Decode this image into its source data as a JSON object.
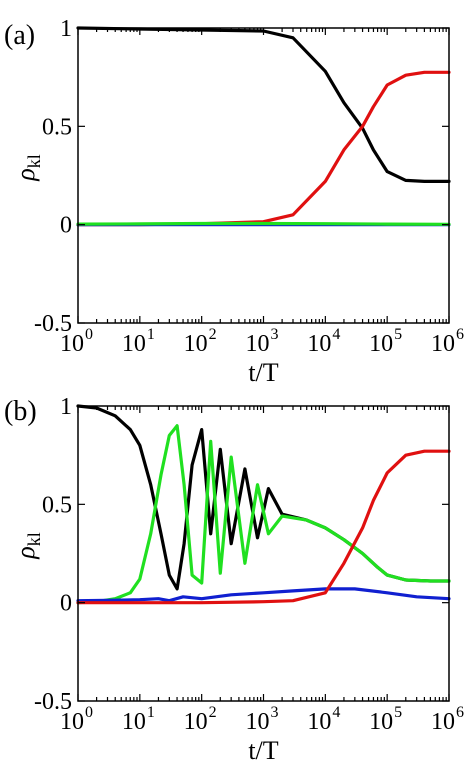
{
  "chart_data": [
    {
      "panel": "(a)",
      "type": "line",
      "xlabel": "t/T",
      "ylabel": "ρ",
      "ylabel_sub": "kl",
      "xscale": "log",
      "xlim": [
        1,
        1000000
      ],
      "ylim": [
        -0.5,
        1
      ],
      "yticks": [
        "-0.5",
        "0",
        "0.5",
        "1"
      ],
      "xticks": [
        {
          "base": "10",
          "exp": "0"
        },
        {
          "base": "10",
          "exp": "1"
        },
        {
          "base": "10",
          "exp": "2"
        },
        {
          "base": "10",
          "exp": "3"
        },
        {
          "base": "10",
          "exp": "4"
        },
        {
          "base": "10",
          "exp": "5"
        },
        {
          "base": "10",
          "exp": "6"
        }
      ],
      "series": [
        {
          "color": "#000000",
          "x": [
            1,
            10,
            100,
            1000,
            3000,
            10000,
            20000,
            40000,
            60000,
            100000,
            200000,
            400000,
            1000000
          ],
          "y": [
            1.0,
            0.995,
            0.99,
            0.985,
            0.95,
            0.78,
            0.62,
            0.49,
            0.38,
            0.27,
            0.225,
            0.22,
            0.22
          ]
        },
        {
          "color": "#e01010",
          "x": [
            1,
            10,
            100,
            1000,
            3000,
            10000,
            20000,
            40000,
            60000,
            100000,
            200000,
            400000,
            1000000
          ],
          "y": [
            0.0,
            0.0,
            0.005,
            0.015,
            0.05,
            0.22,
            0.38,
            0.5,
            0.6,
            0.71,
            0.76,
            0.775,
            0.775
          ]
        },
        {
          "color": "#1020d0",
          "x": [
            1,
            10,
            100,
            1000,
            10000,
            100000,
            1000000
          ],
          "y": [
            0.0,
            0.0,
            0.0,
            0.0,
            0.0,
            0.0,
            0.0
          ]
        },
        {
          "color": "#20e020",
          "x": [
            1,
            10,
            100,
            1000,
            10000,
            100000,
            1000000
          ],
          "y": [
            0.003,
            0.004,
            0.006,
            0.006,
            0.005,
            0.003,
            0.002
          ]
        }
      ]
    },
    {
      "panel": "(b)",
      "type": "line",
      "xlabel": "t/T",
      "ylabel": "ρ",
      "ylabel_sub": "kl",
      "xscale": "log",
      "xlim": [
        1,
        1000000
      ],
      "ylim": [
        -0.5,
        1
      ],
      "yticks": [
        "-0.5",
        "0",
        "0.5",
        "1"
      ],
      "xticks": [
        {
          "base": "10",
          "exp": "0"
        },
        {
          "base": "10",
          "exp": "1"
        },
        {
          "base": "10",
          "exp": "2"
        },
        {
          "base": "10",
          "exp": "3"
        },
        {
          "base": "10",
          "exp": "4"
        },
        {
          "base": "10",
          "exp": "5"
        },
        {
          "base": "10",
          "exp": "6"
        }
      ],
      "series": [
        {
          "color": "#000000",
          "x": [
            1,
            2,
            4,
            7,
            10,
            15,
            22,
            30,
            40,
            52,
            70,
            100,
            140,
            200,
            300,
            500,
            800,
            1200,
            2000,
            5000,
            10000,
            20000,
            40000,
            70000,
            100000,
            200000,
            500000,
            1000000
          ],
          "y": [
            1.0,
            0.99,
            0.95,
            0.88,
            0.8,
            0.6,
            0.35,
            0.14,
            0.07,
            0.3,
            0.7,
            0.88,
            0.35,
            0.78,
            0.3,
            0.68,
            0.33,
            0.58,
            0.45,
            0.42,
            0.38,
            0.32,
            0.25,
            0.18,
            0.14,
            0.115,
            0.11,
            0.11
          ]
        },
        {
          "color": "#20e020",
          "x": [
            1,
            2,
            4,
            7,
            10,
            15,
            22,
            30,
            40,
            52,
            70,
            100,
            140,
            200,
            300,
            500,
            800,
            1200,
            2000,
            5000,
            10000,
            20000,
            40000,
            70000,
            100000,
            200000,
            500000,
            1000000
          ],
          "y": [
            0.0,
            0.005,
            0.02,
            0.05,
            0.12,
            0.35,
            0.65,
            0.85,
            0.9,
            0.6,
            0.14,
            0.1,
            0.82,
            0.15,
            0.74,
            0.2,
            0.6,
            0.35,
            0.44,
            0.42,
            0.38,
            0.32,
            0.25,
            0.18,
            0.14,
            0.115,
            0.11,
            0.11
          ]
        },
        {
          "color": "#1020d0",
          "x": [
            1,
            3,
            10,
            20,
            30,
            50,
            100,
            300,
            1000,
            3000,
            10000,
            30000,
            100000,
            300000,
            1000000
          ],
          "y": [
            0.01,
            0.012,
            0.015,
            0.02,
            0.01,
            0.03,
            0.02,
            0.04,
            0.05,
            0.06,
            0.07,
            0.07,
            0.05,
            0.03,
            0.02
          ]
        },
        {
          "color": "#e01010",
          "x": [
            1,
            10,
            100,
            1000,
            3000,
            10000,
            20000,
            40000,
            60000,
            100000,
            200000,
            400000,
            1000000
          ],
          "y": [
            0.0,
            0.0,
            0.0,
            0.005,
            0.01,
            0.05,
            0.2,
            0.38,
            0.52,
            0.66,
            0.75,
            0.77,
            0.77
          ]
        }
      ]
    }
  ]
}
